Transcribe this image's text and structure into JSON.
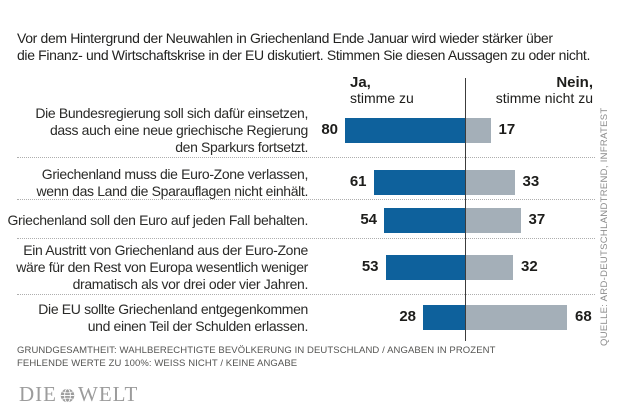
{
  "intro": {
    "line1": "Vor dem Hintergrund der Neuwahlen in Griechenland Ende Januar wird wieder stärker über",
    "line2": "die Finanz- und Wirtschaftskrise in der EU diskutiert. Stimmen Sie diesen Aussagen zu oder nicht."
  },
  "column_headers": {
    "yes_title": "Ja,",
    "yes_subtitle": "stimme zu",
    "no_title": "Nein,",
    "no_subtitle": "stimme nicht zu"
  },
  "chart_data": {
    "type": "bar",
    "orientation": "horizontal_diverging",
    "unit": "percent",
    "value_labels_shown": true,
    "center_axis": true,
    "categories": [
      "Die Bundesregierung soll sich dafür einsetzen, dass auch eine neue griechische Regierung den Sparkurs fortsetzt.",
      "Griechenland muss die Euro-Zone verlassen, wenn das Land die Sparauflagen nicht einhält.",
      "Griechenland soll den Euro auf jeden Fall behalten.",
      "Ein Austritt von Griechenland aus der Euro-Zone wäre für den Rest von Europa wesentlich weniger dramatisch als vor drei oder vier Jahren.",
      "Die EU sollte Griechenland entgegenkommen und einen Teil der Schulden erlassen."
    ],
    "categories_lines": [
      [
        "Die Bundesregierung soll sich dafür einsetzen,",
        "dass auch eine neue griechische Regierung",
        "den Sparkurs fortsetzt."
      ],
      [
        "Griechenland muss die Euro-Zone verlassen,",
        "wenn das Land die Sparauflagen nicht einhält."
      ],
      [
        "Griechenland soll den Euro auf jeden Fall behalten."
      ],
      [
        "Ein Austritt von Griechenland aus der Euro-Zone",
        "wäre für den Rest von Europa wesentlich weniger",
        "dramatisch als vor drei oder vier Jahren."
      ],
      [
        "Die EU sollte Griechenland entgegenkommen",
        "und einen Teil der Schulden erlassen."
      ]
    ],
    "series": [
      {
        "name": "Ja, stimme zu",
        "color": "#0e619c",
        "values": [
          80,
          61,
          54,
          53,
          28
        ]
      },
      {
        "name": "Nein, stimme nicht zu",
        "color": "#a4afb8",
        "values": [
          17,
          33,
          37,
          32,
          68
        ]
      }
    ]
  },
  "footnote": {
    "line1": "GRUNDGESAMTHEIT: WAHLBERECHTIGTE BEVÖLKERUNG IN DEUTSCHLAND / ANGABEN IN PROZENT",
    "line2": "FEHLENDE WERTE ZU 100%: WEISS NICHT / KEINE ANGABE"
  },
  "source": "QUELLE: ARD-DEUTSCHLANDTREND, INFRATEST",
  "logo": {
    "word1": "DIE",
    "word2": "WELT"
  },
  "colors": {
    "yes_bar": "#0e619c",
    "no_bar": "#a4afb8",
    "axis_line": "#3c3c3c",
    "separator": "#aeaeae",
    "logo_gray": "#9c9c9c"
  }
}
